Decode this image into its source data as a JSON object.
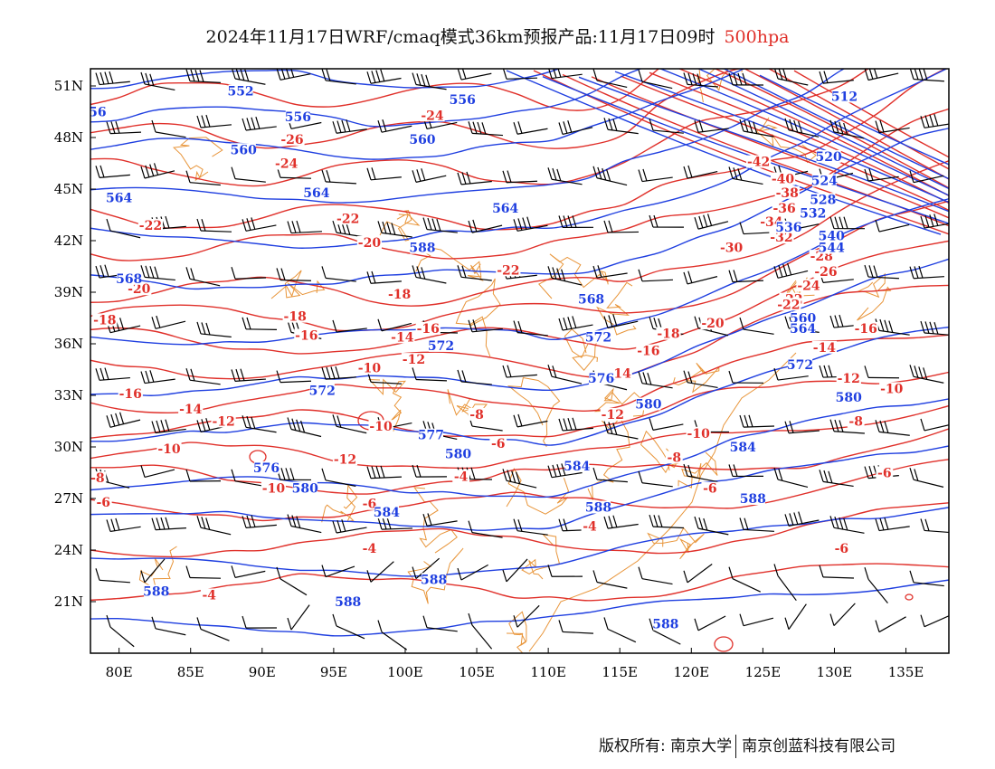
{
  "title": {
    "text": "2024年11月17日WRF/cmaq模式36km预报产品:11月17日09时",
    "level": "500hpa"
  },
  "colors": {
    "height": "#1f3fe0",
    "temperature": "#e0302a",
    "boundary": "#e8953a",
    "wind": "#000000",
    "level_text": "#e0302a"
  },
  "map": {
    "lon_range": [
      78,
      138
    ],
    "lat_range": [
      18,
      52
    ],
    "lon_ticks": [
      "80E",
      "85E",
      "90E",
      "95E",
      "100E",
      "105E",
      "110E",
      "115E",
      "120E",
      "125E",
      "130E",
      "135E"
    ],
    "lon_values": [
      80,
      85,
      90,
      95,
      100,
      105,
      110,
      115,
      120,
      125,
      130,
      135
    ],
    "lat_ticks": [
      "51N",
      "48N",
      "45N",
      "42N",
      "39N",
      "36N",
      "33N",
      "30N",
      "27N",
      "24N",
      "21N"
    ],
    "lat_values": [
      51,
      48,
      45,
      42,
      39,
      36,
      33,
      30,
      27,
      24,
      21
    ],
    "height_labels": [
      {
        "t": "552",
        "lon": 88.5,
        "lat": 50.7
      },
      {
        "t": "556",
        "lon": 104.0,
        "lat": 50.2
      },
      {
        "t": "56",
        "lon": 78.5,
        "lat": 49.5
      },
      {
        "t": "556",
        "lon": 92.5,
        "lat": 49.2
      },
      {
        "t": "560",
        "lon": 101.2,
        "lat": 47.9
      },
      {
        "t": "560",
        "lon": 88.7,
        "lat": 47.3
      },
      {
        "t": "564",
        "lon": 80.0,
        "lat": 44.5
      },
      {
        "t": "564",
        "lon": 93.8,
        "lat": 44.8
      },
      {
        "t": "564",
        "lon": 107.0,
        "lat": 43.9
      },
      {
        "t": "588",
        "lon": 101.2,
        "lat": 41.6
      },
      {
        "t": "568",
        "lon": 80.7,
        "lat": 39.8
      },
      {
        "t": "568",
        "lon": 113.0,
        "lat": 38.6
      },
      {
        "t": "572",
        "lon": 102.5,
        "lat": 35.9
      },
      {
        "t": "572",
        "lon": 113.5,
        "lat": 36.4
      },
      {
        "t": "576",
        "lon": 113.7,
        "lat": 34.0
      },
      {
        "t": "572",
        "lon": 94.2,
        "lat": 33.3
      },
      {
        "t": "580",
        "lon": 117.0,
        "lat": 32.5
      },
      {
        "t": "580",
        "lon": 131.0,
        "lat": 32.9
      },
      {
        "t": "577",
        "lon": 101.8,
        "lat": 30.7
      },
      {
        "t": "580",
        "lon": 103.7,
        "lat": 29.6
      },
      {
        "t": "584",
        "lon": 123.6,
        "lat": 30.0
      },
      {
        "t": "576",
        "lon": 90.3,
        "lat": 28.8
      },
      {
        "t": "584",
        "lon": 112.0,
        "lat": 28.9
      },
      {
        "t": "580",
        "lon": 93.0,
        "lat": 27.6
      },
      {
        "t": "584",
        "lon": 98.7,
        "lat": 26.2
      },
      {
        "t": "588",
        "lon": 113.5,
        "lat": 26.5
      },
      {
        "t": "588",
        "lon": 124.3,
        "lat": 27.0
      },
      {
        "t": "588",
        "lon": 102.0,
        "lat": 22.3
      },
      {
        "t": "588",
        "lon": 82.6,
        "lat": 21.6
      },
      {
        "t": "588",
        "lon": 96.0,
        "lat": 21.0
      },
      {
        "t": "588",
        "lon": 118.2,
        "lat": 19.7
      },
      {
        "t": "512",
        "lon": 130.7,
        "lat": 50.4
      },
      {
        "t": "520",
        "lon": 129.6,
        "lat": 46.9
      },
      {
        "t": "524",
        "lon": 129.3,
        "lat": 45.5
      },
      {
        "t": "528",
        "lon": 129.2,
        "lat": 44.4
      },
      {
        "t": "532",
        "lon": 128.5,
        "lat": 43.6
      },
      {
        "t": "536",
        "lon": 126.8,
        "lat": 42.8
      },
      {
        "t": "540",
        "lon": 129.8,
        "lat": 42.3
      },
      {
        "t": "544",
        "lon": 129.8,
        "lat": 41.6
      },
      {
        "t": "560",
        "lon": 127.8,
        "lat": 37.5
      },
      {
        "t": "564",
        "lon": 127.8,
        "lat": 36.9
      },
      {
        "t": "572",
        "lon": 127.6,
        "lat": 34.8
      }
    ],
    "temperature_labels": [
      {
        "t": "-24",
        "lon": 101.9,
        "lat": 49.3
      },
      {
        "t": "-26",
        "lon": 92.1,
        "lat": 47.9
      },
      {
        "t": "-24",
        "lon": 91.7,
        "lat": 46.5
      },
      {
        "t": "-22",
        "lon": 82.2,
        "lat": 42.9
      },
      {
        "t": "-22",
        "lon": 96.0,
        "lat": 43.3
      },
      {
        "t": "-20",
        "lon": 97.5,
        "lat": 41.9
      },
      {
        "t": "-22",
        "lon": 107.2,
        "lat": 40.3
      },
      {
        "t": "-20",
        "lon": 81.4,
        "lat": 39.2
      },
      {
        "t": "-18",
        "lon": 79.0,
        "lat": 37.4
      },
      {
        "t": "-18",
        "lon": 92.3,
        "lat": 37.6
      },
      {
        "t": "-18",
        "lon": 99.6,
        "lat": 38.9
      },
      {
        "t": "-16",
        "lon": 93.1,
        "lat": 36.5
      },
      {
        "t": "-14",
        "lon": 99.8,
        "lat": 36.4
      },
      {
        "t": "-16",
        "lon": 101.6,
        "lat": 36.9
      },
      {
        "t": "-12",
        "lon": 100.6,
        "lat": 35.1
      },
      {
        "t": "-10",
        "lon": 97.5,
        "lat": 34.6
      },
      {
        "t": "-16",
        "lon": 80.8,
        "lat": 33.1
      },
      {
        "t": "-14",
        "lon": 85.0,
        "lat": 32.2
      },
      {
        "t": "-12",
        "lon": 87.3,
        "lat": 31.5
      },
      {
        "t": "-10",
        "lon": 98.3,
        "lat": 31.2
      },
      {
        "t": "-10",
        "lon": 83.5,
        "lat": 29.9
      },
      {
        "t": "-12",
        "lon": 95.8,
        "lat": 29.3
      },
      {
        "t": "-10",
        "lon": 90.8,
        "lat": 27.6
      },
      {
        "t": "-8",
        "lon": 105.0,
        "lat": 31.9
      },
      {
        "t": "-6",
        "lon": 106.5,
        "lat": 30.2
      },
      {
        "t": "-4",
        "lon": 103.9,
        "lat": 28.3
      },
      {
        "t": "-6",
        "lon": 97.5,
        "lat": 26.7
      },
      {
        "t": "-4",
        "lon": 97.5,
        "lat": 24.1
      },
      {
        "t": "-4",
        "lon": 86.3,
        "lat": 21.4
      },
      {
        "t": "-4",
        "lon": 112.9,
        "lat": 25.4
      },
      {
        "t": "-8",
        "lon": 78.5,
        "lat": 28.2
      },
      {
        "t": "-6",
        "lon": 78.9,
        "lat": 26.8
      },
      {
        "t": "-16",
        "lon": 117.0,
        "lat": 35.6
      },
      {
        "t": "-14",
        "lon": 115.0,
        "lat": 34.3
      },
      {
        "t": "-12",
        "lon": 114.5,
        "lat": 31.9
      },
      {
        "t": "-10",
        "lon": 120.5,
        "lat": 30.8
      },
      {
        "t": "-8",
        "lon": 118.8,
        "lat": 29.4
      },
      {
        "t": "-6",
        "lon": 121.3,
        "lat": 27.6
      },
      {
        "t": "-8",
        "lon": 131.5,
        "lat": 31.5
      },
      {
        "t": "-6",
        "lon": 133.5,
        "lat": 28.5
      },
      {
        "t": "-6",
        "lon": 130.5,
        "lat": 24.1
      },
      {
        "t": "-10",
        "lon": 134.0,
        "lat": 33.4
      },
      {
        "t": "-12",
        "lon": 131.0,
        "lat": 34.0
      },
      {
        "t": "-14",
        "lon": 129.3,
        "lat": 35.8
      },
      {
        "t": "-16",
        "lon": 132.2,
        "lat": 36.9
      },
      {
        "t": "-18",
        "lon": 118.4,
        "lat": 36.6
      },
      {
        "t": "-20",
        "lon": 121.5,
        "lat": 37.2
      },
      {
        "t": "-22",
        "lon": 127.0,
        "lat": 38.6
      },
      {
        "t": "-24",
        "lon": 128.2,
        "lat": 39.4
      },
      {
        "t": "-26",
        "lon": 129.4,
        "lat": 40.2
      },
      {
        "t": "-28",
        "lon": 129.1,
        "lat": 41.1
      },
      {
        "t": "-30",
        "lon": 122.8,
        "lat": 41.6
      },
      {
        "t": "-32",
        "lon": 126.3,
        "lat": 42.2
      },
      {
        "t": "-34",
        "lon": 125.6,
        "lat": 43.1
      },
      {
        "t": "-36",
        "lon": 126.5,
        "lat": 43.9
      },
      {
        "t": "-38",
        "lon": 126.7,
        "lat": 44.8
      },
      {
        "t": "-40",
        "lon": 126.4,
        "lat": 45.6
      },
      {
        "t": "-42",
        "lon": 124.7,
        "lat": 46.6
      },
      {
        "t": "-22",
        "lon": 126.8,
        "lat": 38.3
      }
    ]
  },
  "footer": {
    "owner_label": "版权所有:",
    "org1": "南京大学",
    "org2": "南京创蓝科技有限公司"
  }
}
